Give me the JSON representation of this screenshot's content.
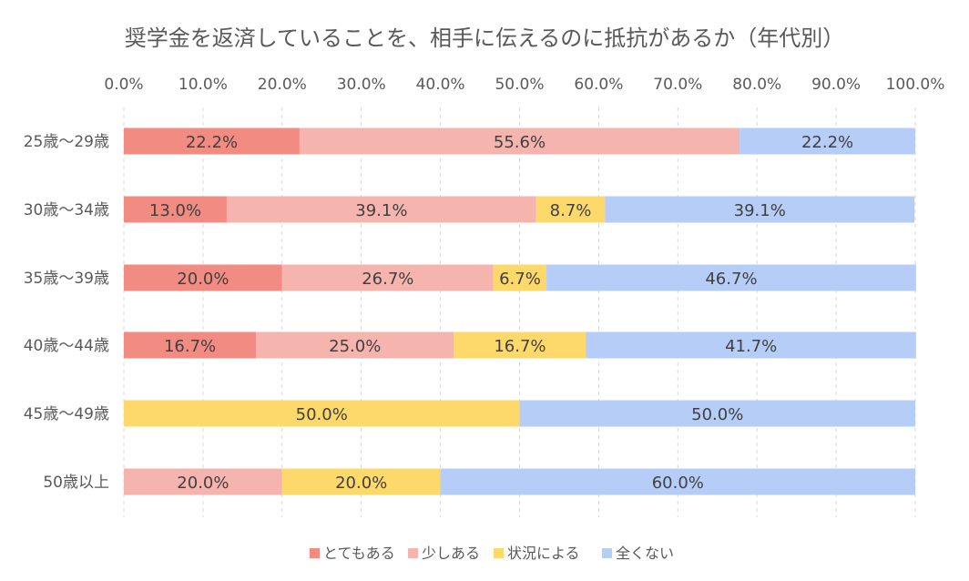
{
  "chart_data": {
    "type": "bar",
    "orientation": "horizontal",
    "stacked": true,
    "title": "奨学金を返済していることを、相手に伝えるのに抵抗があるか（年代別）",
    "xlim": [
      0,
      100
    ],
    "x_ticks": [
      "0.0%",
      "10.0%",
      "20.0%",
      "30.0%",
      "40.0%",
      "50.0%",
      "60.0%",
      "70.0%",
      "80.0%",
      "90.0%",
      "100.0%"
    ],
    "categories": [
      "25歳～29歳",
      "30歳～34歳",
      "35歳～39歳",
      "40歳～44歳",
      "45歳～49歳",
      "50歳以上"
    ],
    "series": [
      {
        "name": "とてもある",
        "color": "#f28b82",
        "values": [
          22.2,
          13.0,
          20.0,
          16.7,
          0,
          0
        ],
        "labels": [
          "22.2%",
          "13.0%",
          "20.0%",
          "16.7%",
          "",
          ""
        ]
      },
      {
        "name": "少しある",
        "color": "#f6b4ae",
        "values": [
          55.6,
          39.1,
          26.7,
          25.0,
          0,
          20.0
        ],
        "labels": [
          "55.6%",
          "39.1%",
          "26.7%",
          "25.0%",
          "",
          "20.0%"
        ]
      },
      {
        "name": "状況による",
        "color": "#fdd86a",
        "values": [
          0,
          8.7,
          6.7,
          16.7,
          50.0,
          20.0
        ],
        "labels": [
          "",
          "8.7%",
          "6.7%",
          "16.7%",
          "50.0%",
          "20.0%"
        ]
      },
      {
        "name": "全くない",
        "color": "#b6cdf8",
        "values": [
          22.2,
          39.1,
          46.7,
          41.7,
          50.0,
          60.0
        ],
        "labels": [
          "22.2%",
          "39.1%",
          "46.7%",
          "41.7%",
          "50.0%",
          "60.0%"
        ]
      }
    ],
    "grid": true,
    "legend_position": "bottom"
  }
}
